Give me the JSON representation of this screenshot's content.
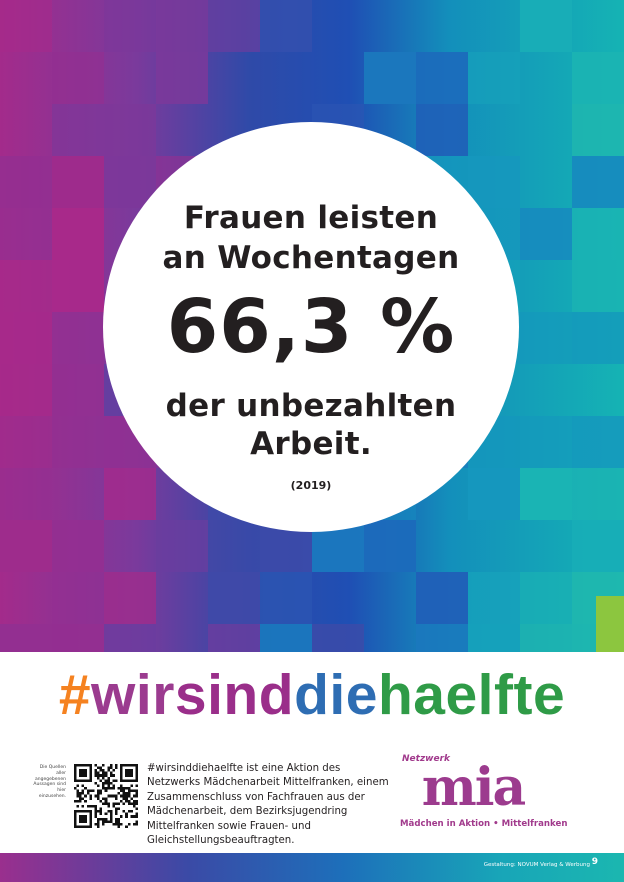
{
  "colors": {
    "hash": "#f58220",
    "wirs": "#9b3b8f",
    "ind": "#9a2e8a",
    "die": "#2e6db3",
    "haelfte": "#2f9b47",
    "text_dark": "#231f20",
    "logo_purple": "#a13a8c"
  },
  "statement": {
    "line1": "Frauen leisten",
    "line2": "an Wochentagen",
    "percentage": "66,3 %",
    "line3": "der unbezahlten",
    "line4": "Arbeit.",
    "year": "(2019)"
  },
  "hashtag": {
    "part1": "#",
    "part2": "wir",
    "part3": "sind",
    "part4": "die",
    "part5": "haelfte"
  },
  "sources_note": "Die Quellen aller angegebenen Aussagen sind hier einzusehen.",
  "description": "#wirsinddiehaelfte ist eine Aktion des Netzwerks Mädchenarbeit Mittelfranken, einem Zusammen­schluss von Fachfrauen aus der Mädchenarbeit, dem Bezirksjugendring Mittelfranken sowie Frauen- und Gleichstellungsbeauftragten.",
  "logo": {
    "top_label": "Netzwerk",
    "name": "mia",
    "bottom_label": "Mädchen in Aktion • Mittelfranken"
  },
  "footer": {
    "credit": "Gestaltung: NOVUM Verlag & Werbung",
    "page_number": "9"
  }
}
